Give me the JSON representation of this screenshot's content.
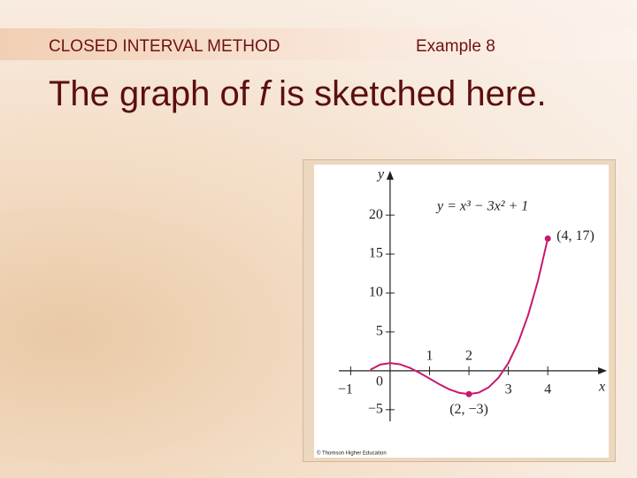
{
  "header": {
    "section": "CLOSED INTERVAL METHOD",
    "example": "Example 8"
  },
  "body_text": {
    "before": "The graph of ",
    "italic": "f",
    "after": " is sketched here."
  },
  "chart_data": {
    "type": "line",
    "equation": "y = x³ − 3x² + 1",
    "x_label": "x",
    "y_label": "y",
    "origin_label": "0",
    "credit": "© Thomson Higher Education",
    "x": [
      -0.5,
      -0.25,
      0,
      0.25,
      0.5,
      0.75,
      1,
      1.25,
      1.5,
      1.75,
      2,
      2.25,
      2.5,
      2.75,
      3,
      3.25,
      3.5,
      3.75,
      4
    ],
    "series": [
      {
        "color": "#c8186e",
        "values": [
          0.13,
          0.8,
          1,
          0.83,
          0.38,
          -0.27,
          -1,
          -1.73,
          -2.38,
          -2.83,
          -3,
          -2.8,
          -2.13,
          -0.89,
          1,
          3.64,
          7.13,
          11.55,
          17
        ]
      }
    ],
    "points": [
      {
        "x": 2,
        "y": -3,
        "label": "(2, −3)"
      },
      {
        "x": 4,
        "y": 17,
        "label": "(4, 17)"
      }
    ],
    "xlim": [
      -1.3,
      5.5
    ],
    "ylim": [
      -6.5,
      25.7
    ],
    "xticks": [
      {
        "value": -1,
        "label": "−1"
      },
      1,
      2,
      3,
      4
    ],
    "yticks": [
      {
        "value": -5,
        "label": "−5"
      },
      5,
      10,
      15,
      20
    ]
  }
}
